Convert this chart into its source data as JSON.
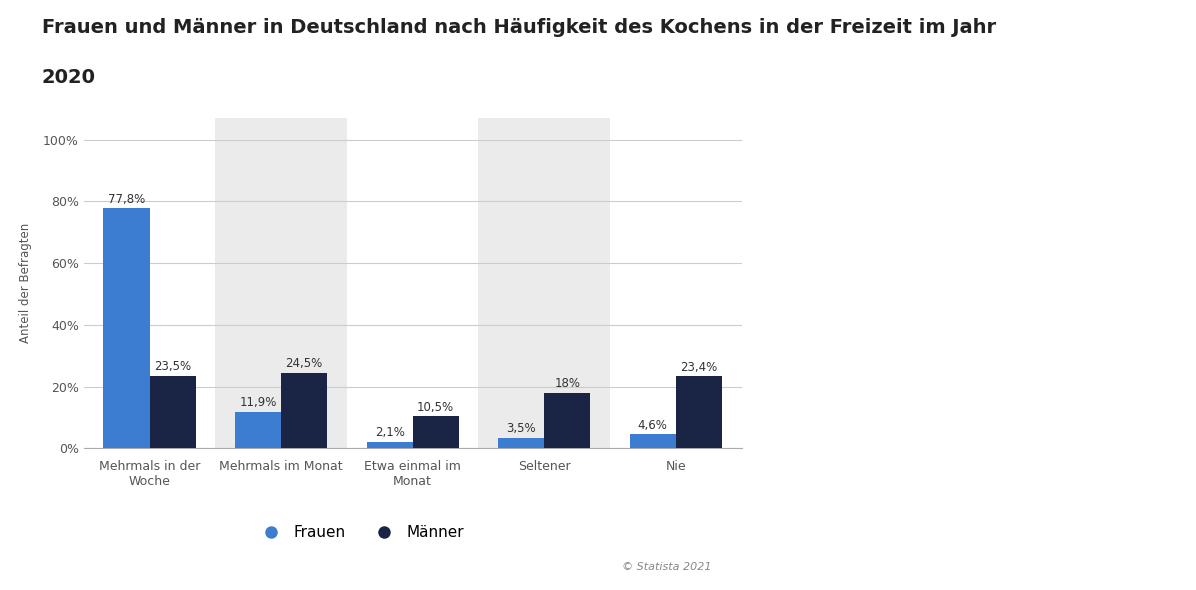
{
  "title_line1": "Frauen und Männer in Deutschland nach Häufigkeit des Kochens in der Freizeit im Jahr",
  "title_line2": "2020",
  "categories": [
    "Mehrmals in der\nWoche",
    "Mehrmals im Monat",
    "Etwa einmal im\nMonat",
    "Seltener",
    "Nie"
  ],
  "frauen": [
    77.8,
    11.9,
    2.1,
    3.5,
    4.6
  ],
  "maenner": [
    23.5,
    24.5,
    10.5,
    18.0,
    23.4
  ],
  "frauen_labels": [
    "77,8%",
    "11,9%",
    "2,1%",
    "3,5%",
    "4,6%"
  ],
  "maenner_labels": [
    "23,5%",
    "24,5%",
    "10,5%",
    "18%",
    "23,4%"
  ],
  "frauen_color": "#3d7dd1",
  "maenner_color": "#1a2444",
  "ylabel": "Anteil der Befragten",
  "yticks": [
    0,
    20,
    40,
    60,
    80,
    100
  ],
  "ytick_labels": [
    "0%",
    "20%",
    "40%",
    "60%",
    "80%",
    "100%"
  ],
  "ylim": [
    0,
    107
  ],
  "bar_width": 0.35,
  "background_color": "#ffffff",
  "grid_color": "#cccccc",
  "legend_frauen": "Frauen",
  "legend_maenner": "Männer",
  "label_fontsize": 8.5,
  "tick_fontsize": 9,
  "ylabel_fontsize": 8.5,
  "title_fontsize": 14,
  "footer_text": "© Statista 2021",
  "col_bg_colors": [
    "#ffffff",
    "#ebebeb",
    "#ffffff",
    "#ebebeb",
    "#ffffff"
  ]
}
